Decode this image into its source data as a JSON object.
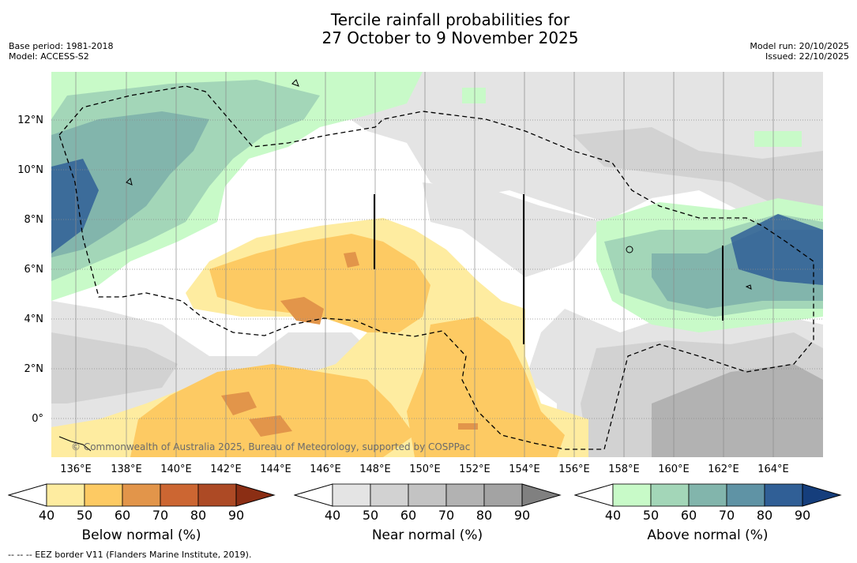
{
  "title": {
    "line1": "Tercile rainfall probabilities for",
    "line2": "27 October to 9 November 2025"
  },
  "meta": {
    "base_period": "Base period: 1981-2018",
    "model": "Model: ACCESS-S2",
    "model_run": "Model run: 20/10/2025",
    "issued": "Issued: 22/10/2025"
  },
  "map": {
    "lat_labels": [
      "12°N",
      "10°N",
      "8°N",
      "6°N",
      "4°N",
      "2°N",
      "0°"
    ],
    "lon_labels": [
      "136°E",
      "138°E",
      "140°E",
      "142°E",
      "144°E",
      "146°E",
      "148°E",
      "150°E",
      "152°E",
      "154°E",
      "156°E",
      "158°E",
      "160°E",
      "162°E",
      "164°E"
    ],
    "copyright": "© Commonwealth of Australia 2025, Bureau of Meteorology, supported by COSPPac"
  },
  "colorbars": [
    {
      "title": "Below normal (%)",
      "ticks": [
        "40",
        "50",
        "60",
        "70",
        "80",
        "90"
      ],
      "colors": [
        "#ffffff",
        "#feeca0",
        "#fdca63",
        "#e2954a",
        "#cc6632",
        "#ad4a25",
        "#8b2e14"
      ]
    },
    {
      "title": "Near normal (%)",
      "ticks": [
        "40",
        "50",
        "60",
        "70",
        "80",
        "90"
      ],
      "colors": [
        "#ffffff",
        "#e4e4e4",
        "#d2d2d2",
        "#c3c3c3",
        "#b2b2b2",
        "#a3a3a3",
        "#808080"
      ]
    },
    {
      "title": "Above normal (%)",
      "ticks": [
        "40",
        "50",
        "60",
        "70",
        "80",
        "90"
      ],
      "colors": [
        "#ffffff",
        "#c8fac8",
        "#a3d6b8",
        "#82b5ac",
        "#5f93a5",
        "#305f96",
        "#153e7c"
      ]
    }
  ],
  "footnote": "-- -- -- EEZ border V11 (Flanders Marine Institute, 2019)."
}
